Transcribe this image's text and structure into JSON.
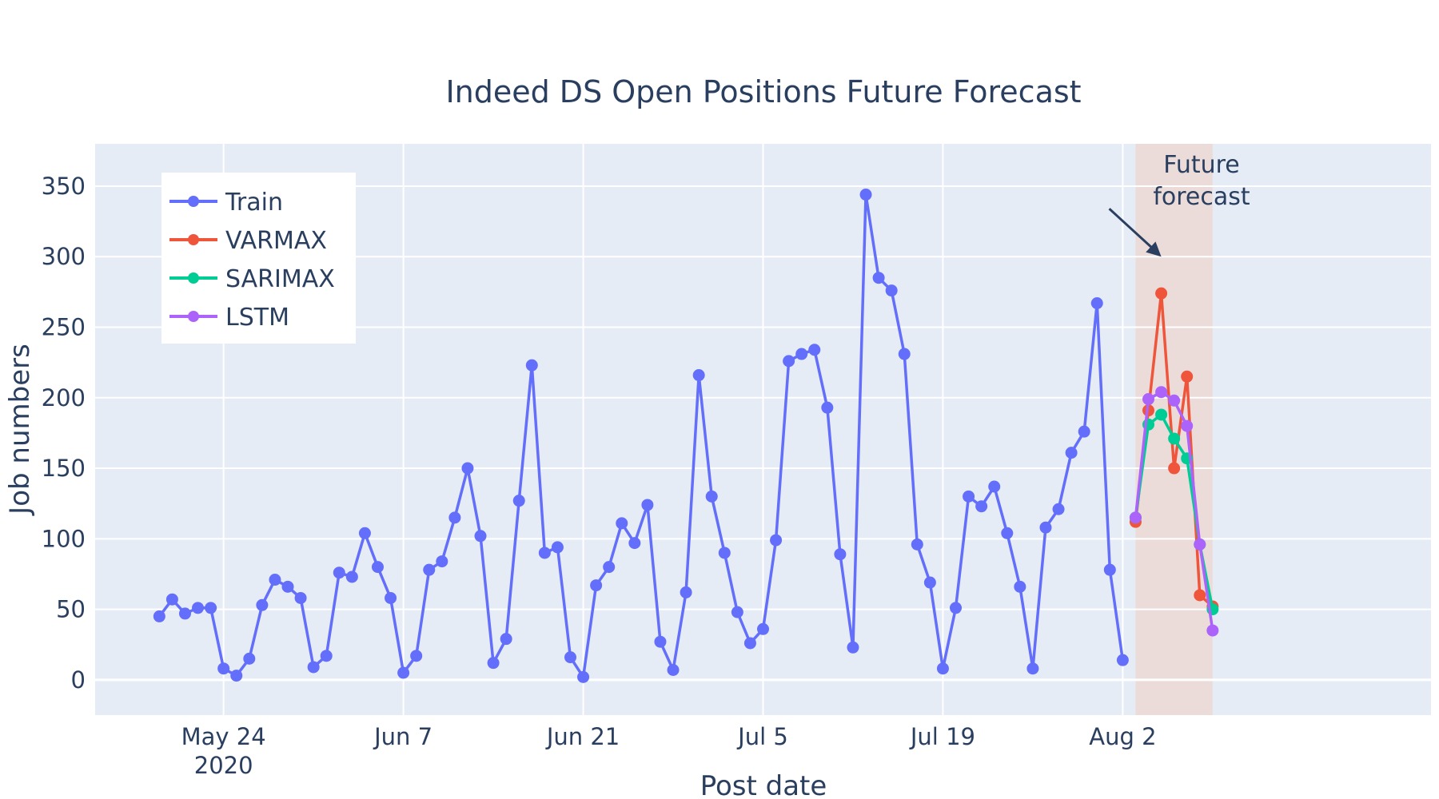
{
  "chart_data": {
    "type": "line",
    "title": "Indeed DS Open Positions Future Forecast",
    "xlabel": "Post date",
    "ylabel": "Job numbers",
    "x_range": [
      "2020-05-14",
      "2020-08-26"
    ],
    "ylim": [
      -25,
      380
    ],
    "x_ticks": [
      {
        "date": "2020-05-24",
        "label": "May 24",
        "sublabel": "2020"
      },
      {
        "date": "2020-06-07",
        "label": "Jun 7",
        "sublabel": ""
      },
      {
        "date": "2020-06-21",
        "label": "Jun 21",
        "sublabel": ""
      },
      {
        "date": "2020-07-05",
        "label": "Jul 5",
        "sublabel": ""
      },
      {
        "date": "2020-07-19",
        "label": "Jul 19",
        "sublabel": ""
      },
      {
        "date": "2020-08-02",
        "label": "Aug 2",
        "sublabel": ""
      }
    ],
    "y_ticks": [
      0,
      50,
      100,
      150,
      200,
      250,
      300,
      350
    ],
    "grid": true,
    "legend_position": "top-left",
    "series": [
      {
        "name": "Train",
        "color": "#636efa",
        "start_date": "2020-05-19",
        "values": [
          45,
          57,
          47,
          51,
          51,
          8,
          3,
          15,
          53,
          71,
          66,
          58,
          9,
          17,
          76,
          73,
          104,
          80,
          58,
          5,
          17,
          78,
          84,
          115,
          150,
          102,
          12,
          29,
          127,
          223,
          90,
          94,
          16,
          2,
          67,
          80,
          111,
          97,
          124,
          27,
          7,
          62,
          216,
          130,
          90,
          48,
          26,
          36,
          99,
          226,
          231,
          234,
          193,
          89,
          23,
          344,
          285,
          276,
          231,
          96,
          69,
          8,
          51,
          130,
          123,
          137,
          104,
          66,
          8,
          108,
          121,
          161,
          176,
          267,
          78,
          14
        ]
      },
      {
        "name": "VARMAX",
        "color": "#ef553b",
        "start_date": "2020-08-03",
        "values": [
          112,
          191,
          274,
          150,
          215,
          60,
          52
        ]
      },
      {
        "name": "SARIMAX",
        "color": "#00cc96",
        "start_date": "2020-08-03",
        "values": [
          115,
          181,
          188,
          171,
          157,
          96,
          50
        ]
      },
      {
        "name": "LSTM",
        "color": "#ab63fa",
        "start_date": "2020-08-03",
        "values": [
          115,
          199,
          204,
          198,
          180,
          96,
          35
        ]
      }
    ],
    "shaded_region": {
      "from": "2020-08-03",
      "to": "2020-08-09",
      "color": "#f2c9b9"
    },
    "annotation": {
      "text_lines": [
        "Future",
        "forecast"
      ],
      "arrow_to_date": "2020-08-05",
      "arrow_to_value": 300
    }
  }
}
